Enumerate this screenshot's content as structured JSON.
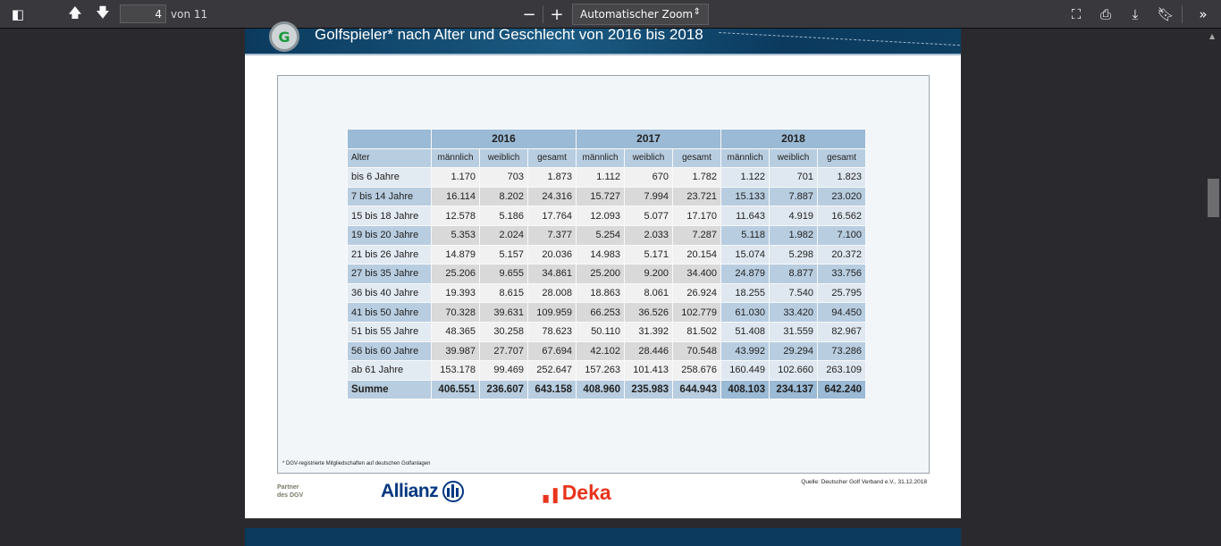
{
  "toolbar": {
    "page_number": "4",
    "page_of": "von 11",
    "zoom_value": "Automatischer Zoom",
    "zoom_out": "−",
    "zoom_in": "+"
  },
  "document": {
    "title": "Golfspieler* nach Alter und Geschlecht von 2016 bis 2018",
    "logo_text": "G",
    "years": [
      "2016",
      "2017",
      "2018"
    ],
    "alter_label": "Alter",
    "sub_headers": [
      "männlich",
      "weiblich",
      "gesamt"
    ],
    "rows": [
      {
        "label": "bis 6 Jahre",
        "values": [
          "1.170",
          "703",
          "1.873",
          "1.112",
          "670",
          "1.782",
          "1.122",
          "701",
          "1.823"
        ]
      },
      {
        "label": "7 bis 14 Jahre",
        "values": [
          "16.114",
          "8.202",
          "24.316",
          "15.727",
          "7.994",
          "23.721",
          "15.133",
          "7.887",
          "23.020"
        ]
      },
      {
        "label": "15 bis 18 Jahre",
        "values": [
          "12.578",
          "5.186",
          "17.764",
          "12.093",
          "5.077",
          "17.170",
          "11.643",
          "4.919",
          "16.562"
        ]
      },
      {
        "label": "19 bis 20 Jahre",
        "values": [
          "5.353",
          "2.024",
          "7.377",
          "5.254",
          "2.033",
          "7.287",
          "5.118",
          "1.982",
          "7.100"
        ]
      },
      {
        "label": "21 bis 26 Jahre",
        "values": [
          "14.879",
          "5.157",
          "20.036",
          "14.983",
          "5.171",
          "20.154",
          "15.074",
          "5.298",
          "20.372"
        ]
      },
      {
        "label": "27 bis 35 Jahre",
        "values": [
          "25.206",
          "9.655",
          "34.861",
          "25.200",
          "9.200",
          "34.400",
          "24.879",
          "8.877",
          "33.756"
        ]
      },
      {
        "label": "36 bis 40 Jahre",
        "values": [
          "19.393",
          "8.615",
          "28.008",
          "18.863",
          "8.061",
          "26.924",
          "18.255",
          "7.540",
          "25.795"
        ]
      },
      {
        "label": "41 bis 50 Jahre",
        "values": [
          "70.328",
          "39.631",
          "109.959",
          "66.253",
          "36.526",
          "102.779",
          "61.030",
          "33.420",
          "94.450"
        ]
      },
      {
        "label": "51 bis 55 Jahre",
        "values": [
          "48.365",
          "30.258",
          "78.623",
          "50.110",
          "31.392",
          "81.502",
          "51.408",
          "31.559",
          "82.967"
        ]
      },
      {
        "label": "56 bis 60 Jahre",
        "values": [
          "39.987",
          "27.707",
          "67.694",
          "42.102",
          "28.446",
          "70.548",
          "43.992",
          "29.294",
          "73.286"
        ]
      },
      {
        "label": "ab 61 Jahre",
        "values": [
          "153.178",
          "99.469",
          "252.647",
          "157.263",
          "101.413",
          "258.676",
          "160.449",
          "102.660",
          "263.109"
        ]
      }
    ],
    "sum": {
      "label": "Summe",
      "values": [
        "406.551",
        "236.607",
        "643.158",
        "408.960",
        "235.983",
        "644.943",
        "408.103",
        "234.137",
        "642.240"
      ]
    },
    "footnote": "*  DGV-registrierte Mitgliedschaften auf deutschen Golfanlagen",
    "source": "Quelle: Deutscher Golf Verband e.V., 31.12.2018",
    "partner": "Partner des DGV",
    "sponsors": [
      "Allianz",
      "Deka"
    ]
  }
}
